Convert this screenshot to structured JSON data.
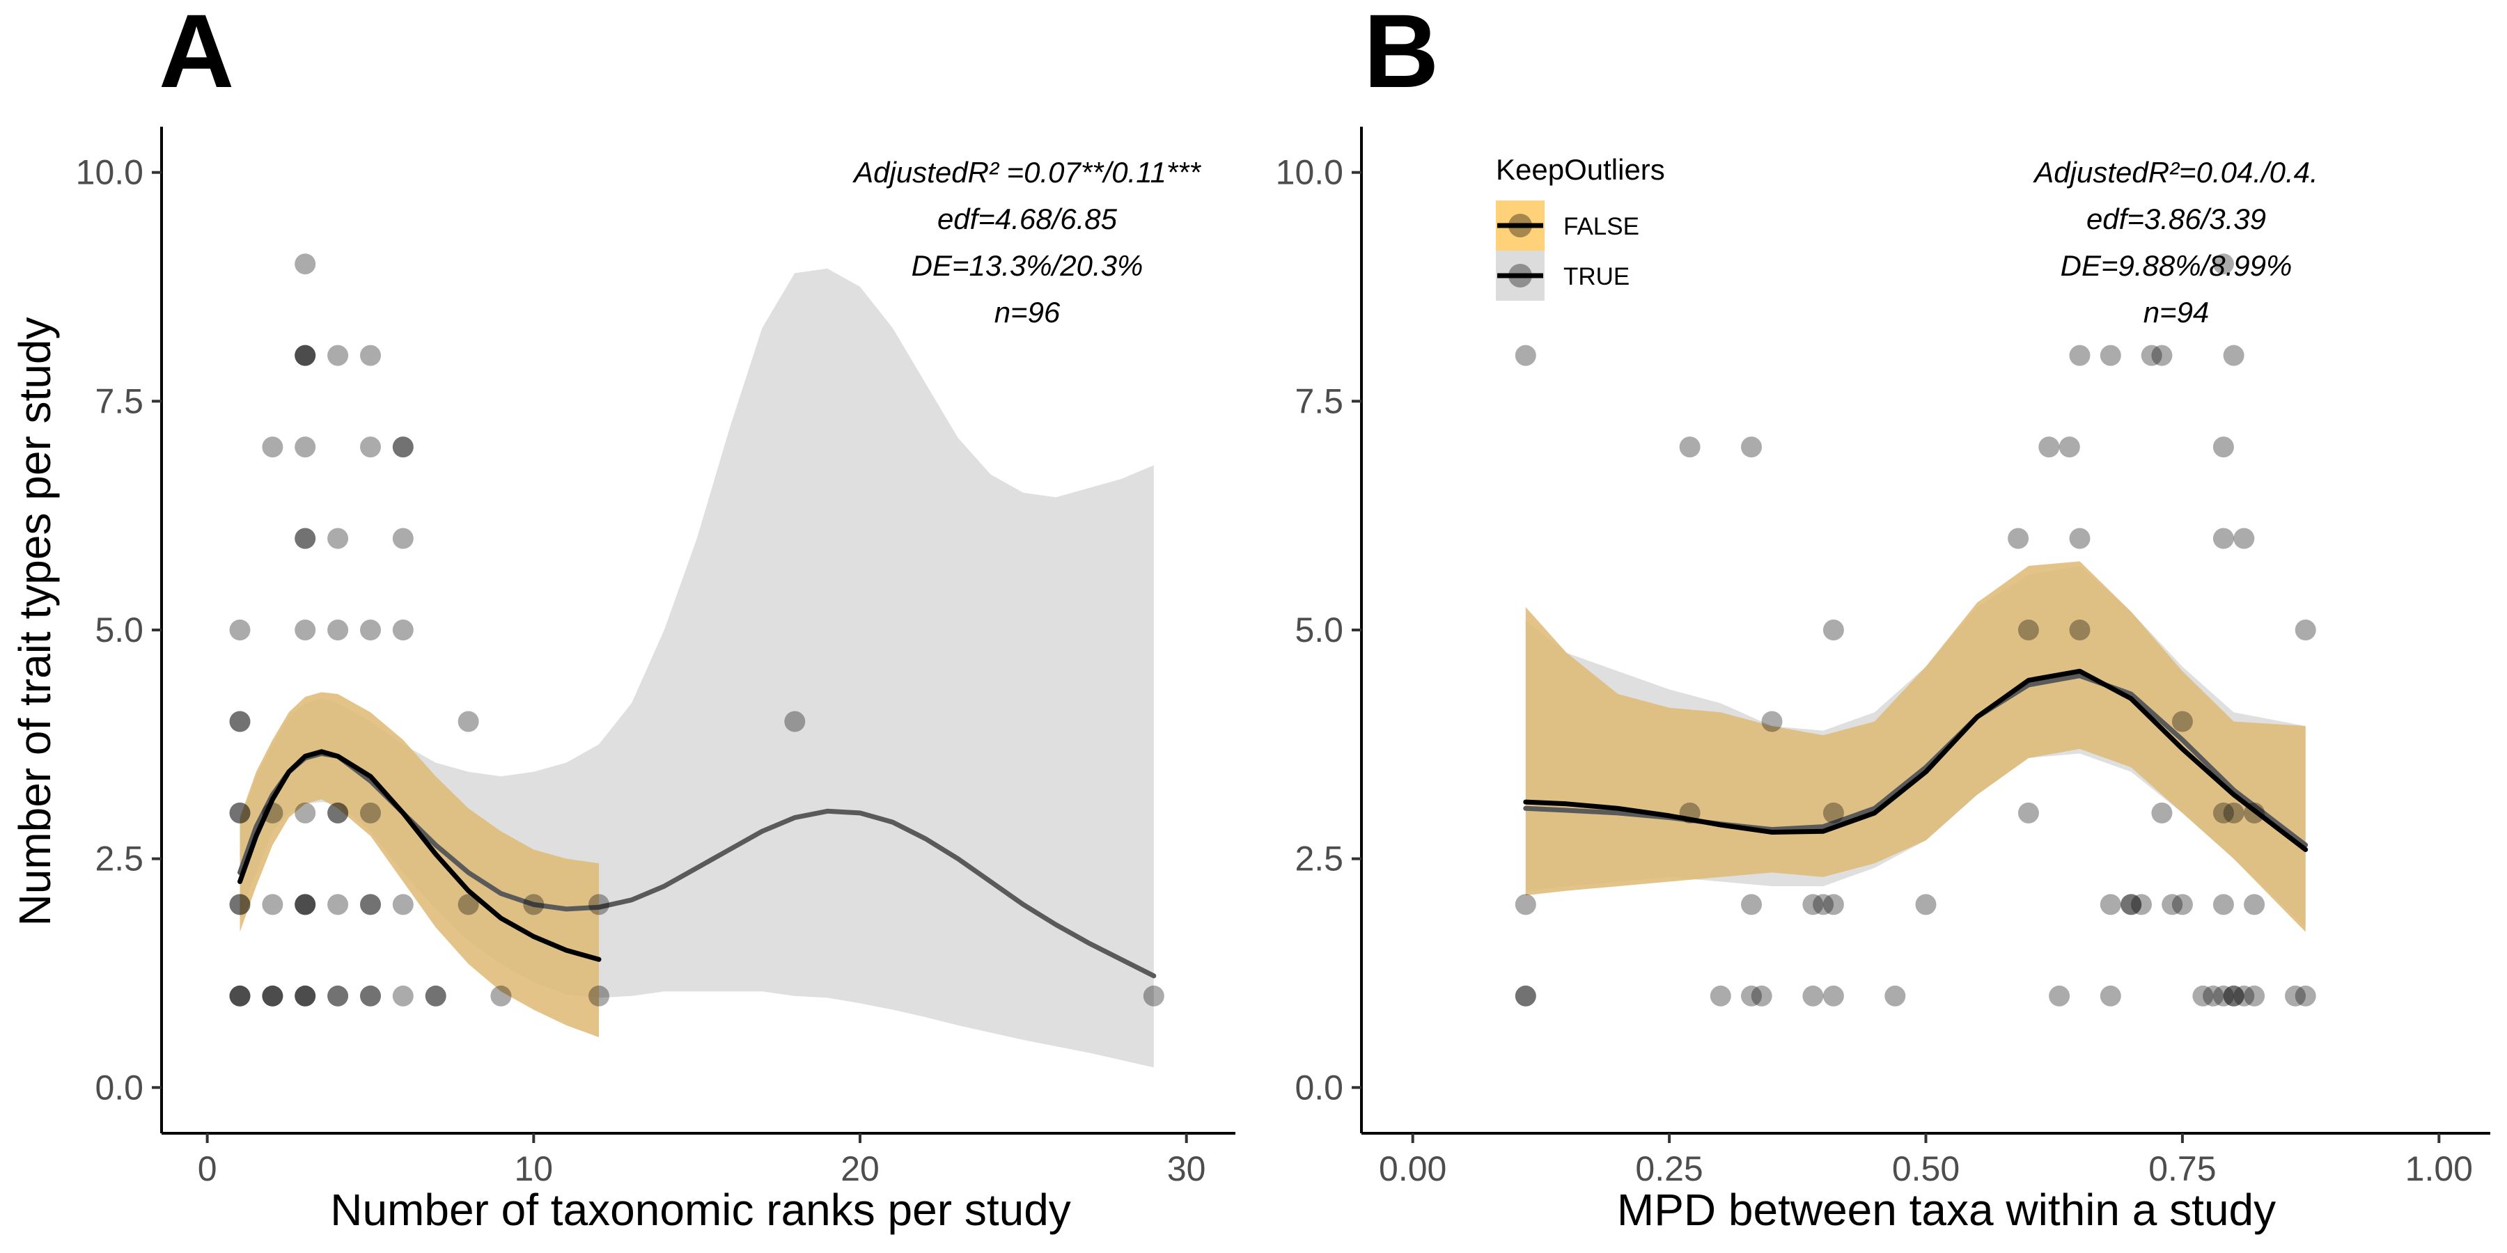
{
  "colors": {
    "band_false": "#FFD27A",
    "band_true": "#DCDCDC",
    "line_false": "#000000",
    "line_true": "#5a5a5a",
    "points": "#000000"
  },
  "legend": {
    "title": "KeepOutliers",
    "items": [
      {
        "label": "FALSE",
        "color": "#FFD27A"
      },
      {
        "label": "TRUE",
        "color": "#DCDCDC"
      }
    ]
  },
  "chart_data": [
    {
      "panel": "A",
      "type": "scatter",
      "xlabel": "Number of taxonomic ranks per study",
      "ylabel": "Number of trait types per study",
      "xlim": [
        -1.4,
        31.5
      ],
      "ylim": [
        -0.5,
        10.5
      ],
      "xticks": [
        0,
        10,
        20,
        30
      ],
      "xtick_labels": [
        "0",
        "10",
        "20",
        "30"
      ],
      "yticks": [
        0,
        2.5,
        5,
        7.5,
        10
      ],
      "ytick_labels": [
        "0.0",
        "2.5",
        "5.0",
        "7.5",
        "10.0"
      ],
      "grid": false,
      "annotation": [
        "AdjustedR² =0.07**/0.11***",
        "edf=4.68/6.85",
        "DE=13.3%/20.3%",
        "n=96"
      ],
      "points": [
        [
          1,
          1
        ],
        [
          1,
          1
        ],
        [
          1,
          1
        ],
        [
          1,
          2
        ],
        [
          1,
          2
        ],
        [
          1,
          3
        ],
        [
          1,
          3
        ],
        [
          1,
          4
        ],
        [
          1,
          4
        ],
        [
          1,
          5
        ],
        [
          2,
          1
        ],
        [
          2,
          1
        ],
        [
          2,
          1
        ],
        [
          2,
          2
        ],
        [
          2,
          3
        ],
        [
          2,
          7
        ],
        [
          3,
          1
        ],
        [
          3,
          1
        ],
        [
          3,
          1
        ],
        [
          3,
          2
        ],
        [
          3,
          2
        ],
        [
          3,
          2
        ],
        [
          3,
          3
        ],
        [
          3,
          5
        ],
        [
          3,
          6
        ],
        [
          3,
          6
        ],
        [
          3,
          7
        ],
        [
          3,
          8
        ],
        [
          3,
          8
        ],
        [
          3,
          8
        ],
        [
          3,
          9
        ],
        [
          4,
          1
        ],
        [
          4,
          1
        ],
        [
          4,
          2
        ],
        [
          4,
          3
        ],
        [
          4,
          3
        ],
        [
          4,
          5
        ],
        [
          4,
          6
        ],
        [
          4,
          8
        ],
        [
          5,
          1
        ],
        [
          5,
          1
        ],
        [
          5,
          2
        ],
        [
          5,
          2
        ],
        [
          5,
          3
        ],
        [
          5,
          5
        ],
        [
          5,
          7
        ],
        [
          5,
          8
        ],
        [
          6,
          1
        ],
        [
          6,
          2
        ],
        [
          6,
          5
        ],
        [
          6,
          6
        ],
        [
          6,
          7
        ],
        [
          6,
          7
        ],
        [
          7,
          1
        ],
        [
          7,
          1
        ],
        [
          8,
          2
        ],
        [
          8,
          4
        ],
        [
          9,
          1
        ],
        [
          10,
          2
        ],
        [
          12,
          1
        ],
        [
          12,
          2
        ],
        [
          18,
          4
        ],
        [
          29,
          1
        ]
      ],
      "series": [
        {
          "name": "FALSE",
          "x": [
            1,
            1.5,
            2,
            2.5,
            3,
            3.5,
            4,
            5,
            6,
            7,
            8,
            9,
            10,
            11,
            12
          ],
          "fit": [
            2.25,
            2.75,
            3.15,
            3.45,
            3.62,
            3.67,
            3.62,
            3.4,
            3.0,
            2.55,
            2.15,
            1.85,
            1.65,
            1.5,
            1.4
          ],
          "lower": [
            1.7,
            2.2,
            2.65,
            2.95,
            3.1,
            3.15,
            3.05,
            2.75,
            2.25,
            1.75,
            1.35,
            1.05,
            0.85,
            0.68,
            0.55
          ],
          "upper": [
            2.95,
            3.45,
            3.8,
            4.1,
            4.27,
            4.32,
            4.3,
            4.1,
            3.8,
            3.4,
            3.05,
            2.8,
            2.6,
            2.5,
            2.45
          ]
        },
        {
          "name": "TRUE",
          "x": [
            1,
            1.5,
            2,
            2.5,
            3,
            3.5,
            4,
            5,
            6,
            7,
            8,
            9,
            10,
            11,
            12,
            13,
            14,
            15,
            16,
            17,
            18,
            19,
            20,
            21,
            22,
            23,
            24,
            25,
            26,
            27,
            28,
            29
          ],
          "fit": [
            2.35,
            2.85,
            3.2,
            3.45,
            3.6,
            3.65,
            3.62,
            3.35,
            3.0,
            2.65,
            2.35,
            2.12,
            2.0,
            1.95,
            1.97,
            2.05,
            2.2,
            2.4,
            2.6,
            2.8,
            2.95,
            3.02,
            3.0,
            2.9,
            2.72,
            2.5,
            2.25,
            2.0,
            1.78,
            1.58,
            1.4,
            1.22
          ],
          "lower": [
            1.9,
            2.35,
            2.8,
            3.0,
            3.1,
            3.12,
            3.1,
            2.8,
            2.35,
            1.95,
            1.6,
            1.35,
            1.15,
            1.02,
            0.98,
            1.0,
            1.05,
            1.05,
            1.05,
            1.05,
            1.0,
            0.98,
            0.92,
            0.85,
            0.77,
            0.68,
            0.6,
            0.52,
            0.45,
            0.38,
            0.3,
            0.22
          ],
          "upper": [
            2.9,
            3.4,
            3.75,
            4.05,
            4.2,
            4.25,
            4.2,
            4.0,
            3.75,
            3.55,
            3.45,
            3.4,
            3.45,
            3.55,
            3.75,
            4.2,
            5.0,
            6.0,
            7.2,
            8.3,
            8.9,
            8.95,
            8.75,
            8.3,
            7.7,
            7.1,
            6.7,
            6.5,
            6.45,
            6.55,
            6.65,
            6.8
          ]
        }
      ]
    },
    {
      "panel": "B",
      "type": "scatter",
      "xlabel": "MPD between taxa within a study",
      "ylabel": "",
      "xlim": [
        -0.05,
        1.05
      ],
      "ylim": [
        -0.5,
        10.5
      ],
      "xticks": [
        0,
        0.25,
        0.5,
        0.75,
        1
      ],
      "xtick_labels": [
        "0.00",
        "0.25",
        "0.50",
        "0.75",
        "1.00"
      ],
      "yticks": [
        0,
        2.5,
        5,
        7.5,
        10
      ],
      "ytick_labels": [
        "0.0",
        "2.5",
        "5.0",
        "7.5",
        "10.0"
      ],
      "grid": false,
      "annotation": [
        "AdjustedR²=0.04./0.4.",
        "edf=3.86/3.39",
        "DE=9.88%/8.99%",
        "n=94"
      ],
      "points": [
        [
          0.11,
          1
        ],
        [
          0.11,
          1
        ],
        [
          0.11,
          2
        ],
        [
          0.11,
          8
        ],
        [
          0.27,
          3
        ],
        [
          0.27,
          7
        ],
        [
          0.3,
          1
        ],
        [
          0.33,
          1
        ],
        [
          0.33,
          2
        ],
        [
          0.33,
          7
        ],
        [
          0.34,
          1
        ],
        [
          0.35,
          4
        ],
        [
          0.39,
          1
        ],
        [
          0.39,
          2
        ],
        [
          0.4,
          2
        ],
        [
          0.41,
          1
        ],
        [
          0.41,
          2
        ],
        [
          0.41,
          3
        ],
        [
          0.41,
          5
        ],
        [
          0.47,
          1
        ],
        [
          0.5,
          2
        ],
        [
          0.59,
          6
        ],
        [
          0.6,
          5
        ],
        [
          0.6,
          3
        ],
        [
          0.62,
          7
        ],
        [
          0.63,
          1
        ],
        [
          0.64,
          7
        ],
        [
          0.65,
          5
        ],
        [
          0.65,
          6
        ],
        [
          0.65,
          8
        ],
        [
          0.68,
          8
        ],
        [
          0.68,
          2
        ],
        [
          0.68,
          1
        ],
        [
          0.7,
          2
        ],
        [
          0.7,
          2
        ],
        [
          0.71,
          2
        ],
        [
          0.72,
          8
        ],
        [
          0.73,
          3
        ],
        [
          0.73,
          8
        ],
        [
          0.74,
          2
        ],
        [
          0.75,
          4
        ],
        [
          0.75,
          2
        ],
        [
          0.77,
          1
        ],
        [
          0.78,
          1
        ],
        [
          0.79,
          1
        ],
        [
          0.79,
          2
        ],
        [
          0.79,
          3
        ],
        [
          0.79,
          6
        ],
        [
          0.79,
          7
        ],
        [
          0.79,
          9
        ],
        [
          0.8,
          1
        ],
        [
          0.8,
          1
        ],
        [
          0.8,
          3
        ],
        [
          0.8,
          8
        ],
        [
          0.81,
          6
        ],
        [
          0.81,
          1
        ],
        [
          0.82,
          1
        ],
        [
          0.82,
          3
        ],
        [
          0.82,
          2
        ],
        [
          0.86,
          1
        ],
        [
          0.87,
          1
        ],
        [
          0.87,
          5
        ]
      ],
      "series": [
        {
          "name": "FALSE",
          "x": [
            0.11,
            0.15,
            0.2,
            0.25,
            0.3,
            0.35,
            0.4,
            0.45,
            0.5,
            0.55,
            0.6,
            0.65,
            0.7,
            0.75,
            0.8,
            0.87
          ],
          "fit": [
            3.12,
            3.1,
            3.05,
            2.97,
            2.87,
            2.79,
            2.8,
            3.0,
            3.45,
            4.05,
            4.45,
            4.55,
            4.25,
            3.7,
            3.2,
            2.6
          ],
          "lower": [
            2.1,
            2.15,
            2.2,
            2.25,
            2.3,
            2.35,
            2.3,
            2.45,
            2.7,
            3.2,
            3.6,
            3.7,
            3.5,
            3.0,
            2.5,
            1.7
          ],
          "upper": [
            5.25,
            4.75,
            4.3,
            4.15,
            4.1,
            3.95,
            3.85,
            4.0,
            4.6,
            5.3,
            5.7,
            5.75,
            5.2,
            4.55,
            4.0,
            3.95
          ]
        },
        {
          "name": "TRUE",
          "x": [
            0.11,
            0.15,
            0.2,
            0.25,
            0.3,
            0.35,
            0.4,
            0.45,
            0.5,
            0.55,
            0.6,
            0.65,
            0.7,
            0.75,
            0.8,
            0.87
          ],
          "fit": [
            3.05,
            3.03,
            3.0,
            2.95,
            2.88,
            2.82,
            2.85,
            3.05,
            3.5,
            4.05,
            4.4,
            4.5,
            4.3,
            3.8,
            3.25,
            2.65
          ],
          "lower": [
            2.15,
            2.2,
            2.25,
            2.3,
            2.25,
            2.2,
            2.2,
            2.4,
            2.7,
            3.2,
            3.6,
            3.65,
            3.45,
            3.0,
            2.5,
            1.75
          ],
          "upper": [
            5.1,
            4.75,
            4.55,
            4.35,
            4.2,
            3.95,
            3.9,
            4.1,
            4.6,
            5.25,
            5.6,
            5.7,
            5.2,
            4.6,
            4.1,
            3.95
          ]
        }
      ]
    }
  ]
}
